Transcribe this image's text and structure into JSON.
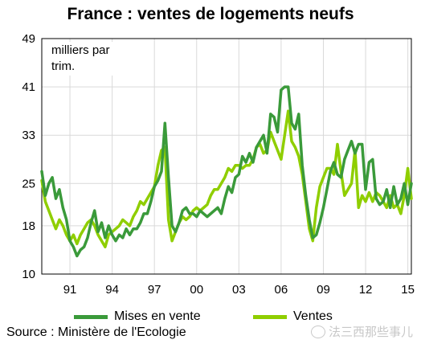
{
  "chart_data": {
    "type": "line",
    "title": "France : ventes de logements neufs",
    "unit_label_line1": "milliers par",
    "unit_label_line2": "trim.",
    "xlim": [
      1989.0,
      2015.25
    ],
    "ylim": [
      10,
      49
    ],
    "y_ticks": [
      10,
      18,
      25,
      33,
      41,
      49
    ],
    "x_ticks": [
      {
        "value": 1991.0,
        "label": "91"
      },
      {
        "value": 1994.0,
        "label": "94"
      },
      {
        "value": 1997.0,
        "label": "97"
      },
      {
        "value": 2000.0,
        "label": "00"
      },
      {
        "value": 2003.0,
        "label": "03"
      },
      {
        "value": 2006.0,
        "label": "06"
      },
      {
        "value": 2009.0,
        "label": "09"
      },
      {
        "value": 2012.0,
        "label": "12"
      },
      {
        "value": 2015.0,
        "label": "15"
      }
    ],
    "grid": true,
    "series": [
      {
        "name": "Mises en vente",
        "color": "#3a9a3a",
        "points": [
          [
            1989.0,
            27
          ],
          [
            1989.25,
            23
          ],
          [
            1989.5,
            25
          ],
          [
            1989.75,
            26
          ],
          [
            1990.0,
            22.5
          ],
          [
            1990.25,
            24
          ],
          [
            1990.5,
            21
          ],
          [
            1990.75,
            19
          ],
          [
            1991.0,
            15.5
          ],
          [
            1991.25,
            14.5
          ],
          [
            1991.5,
            13
          ],
          [
            1991.75,
            14
          ],
          [
            1992.0,
            14.5
          ],
          [
            1992.25,
            16
          ],
          [
            1992.5,
            18.5
          ],
          [
            1992.75,
            20.5
          ],
          [
            1993.0,
            17
          ],
          [
            1993.25,
            18.5
          ],
          [
            1993.5,
            16
          ],
          [
            1993.75,
            18
          ],
          [
            1994.0,
            16.5
          ],
          [
            1994.25,
            15.5
          ],
          [
            1994.5,
            16.5
          ],
          [
            1994.75,
            16
          ],
          [
            1995.0,
            17.5
          ],
          [
            1995.25,
            16.5
          ],
          [
            1995.5,
            17.5
          ],
          [
            1995.75,
            17.5
          ],
          [
            1996.0,
            18.5
          ],
          [
            1996.25,
            20
          ],
          [
            1996.5,
            20
          ],
          [
            1996.75,
            22
          ],
          [
            1997.0,
            24.5
          ],
          [
            1997.25,
            25.5
          ],
          [
            1997.5,
            27
          ],
          [
            1997.75,
            35
          ],
          [
            1998.0,
            26
          ],
          [
            1998.25,
            18
          ],
          [
            1998.5,
            17
          ],
          [
            1998.75,
            18.5
          ],
          [
            1999.0,
            20.5
          ],
          [
            1999.25,
            21
          ],
          [
            1999.5,
            20
          ],
          [
            1999.75,
            20
          ],
          [
            2000.0,
            19.5
          ],
          [
            2000.25,
            20.5
          ],
          [
            2000.5,
            20
          ],
          [
            2000.75,
            19.5
          ],
          [
            2001.0,
            20
          ],
          [
            2001.25,
            20.5
          ],
          [
            2001.5,
            21
          ],
          [
            2001.75,
            20
          ],
          [
            2002.0,
            22.5
          ],
          [
            2002.25,
            24.5
          ],
          [
            2002.5,
            23.5
          ],
          [
            2002.75,
            26
          ],
          [
            2003.0,
            26.5
          ],
          [
            2003.25,
            29.5
          ],
          [
            2003.5,
            28.5
          ],
          [
            2003.75,
            30
          ],
          [
            2004.0,
            28.5
          ],
          [
            2004.25,
            31
          ],
          [
            2004.5,
            32
          ],
          [
            2004.75,
            33
          ],
          [
            2005.0,
            30
          ],
          [
            2005.25,
            36.5
          ],
          [
            2005.5,
            36
          ],
          [
            2005.75,
            33.5
          ],
          [
            2006.0,
            40.5
          ],
          [
            2006.25,
            41
          ],
          [
            2006.5,
            41
          ],
          [
            2006.75,
            35
          ],
          [
            2007.0,
            34
          ],
          [
            2007.25,
            36.5
          ],
          [
            2007.5,
            28
          ],
          [
            2007.75,
            23
          ],
          [
            2008.0,
            19
          ],
          [
            2008.25,
            16
          ],
          [
            2008.5,
            16.5
          ],
          [
            2008.75,
            18.5
          ],
          [
            2009.0,
            21
          ],
          [
            2009.25,
            24
          ],
          [
            2009.5,
            27
          ],
          [
            2009.75,
            28.5
          ],
          [
            2010.0,
            26.5
          ],
          [
            2010.25,
            26
          ],
          [
            2010.5,
            29
          ],
          [
            2010.75,
            30.5
          ],
          [
            2011.0,
            32
          ],
          [
            2011.25,
            30
          ],
          [
            2011.5,
            31.5
          ],
          [
            2011.75,
            31.5
          ],
          [
            2012.0,
            24
          ],
          [
            2012.25,
            28.5
          ],
          [
            2012.5,
            29
          ],
          [
            2012.75,
            22.5
          ],
          [
            2013.0,
            21.5
          ],
          [
            2013.25,
            22
          ],
          [
            2013.5,
            24
          ],
          [
            2013.75,
            21
          ],
          [
            2014.0,
            24.5
          ],
          [
            2014.25,
            21.5
          ],
          [
            2014.5,
            22.5
          ],
          [
            2014.75,
            25
          ],
          [
            2015.0,
            21.5
          ],
          [
            2015.25,
            25
          ]
        ]
      },
      {
        "name": "Ventes",
        "color": "#8fce00",
        "points": [
          [
            1989.0,
            25.5
          ],
          [
            1989.25,
            22
          ],
          [
            1989.5,
            20.5
          ],
          [
            1989.75,
            19
          ],
          [
            1990.0,
            17.5
          ],
          [
            1990.25,
            19
          ],
          [
            1990.5,
            18
          ],
          [
            1990.75,
            16.5
          ],
          [
            1991.0,
            15.5
          ],
          [
            1991.25,
            16.5
          ],
          [
            1991.5,
            15
          ],
          [
            1991.75,
            16.5
          ],
          [
            1992.0,
            17.5
          ],
          [
            1992.25,
            18.5
          ],
          [
            1992.5,
            19
          ],
          [
            1992.75,
            18
          ],
          [
            1993.0,
            16.5
          ],
          [
            1993.25,
            15.5
          ],
          [
            1993.5,
            14.5
          ],
          [
            1993.75,
            16.5
          ],
          [
            1994.0,
            17
          ],
          [
            1994.25,
            17.5
          ],
          [
            1994.5,
            18
          ],
          [
            1994.75,
            19
          ],
          [
            1995.0,
            18.5
          ],
          [
            1995.25,
            18
          ],
          [
            1995.5,
            19.5
          ],
          [
            1995.75,
            20.5
          ],
          [
            1996.0,
            22
          ],
          [
            1996.25,
            21.5
          ],
          [
            1996.5,
            22.5
          ],
          [
            1996.75,
            23.5
          ],
          [
            1997.0,
            24.5
          ],
          [
            1997.25,
            28
          ],
          [
            1997.5,
            30.5
          ],
          [
            1997.75,
            31
          ],
          [
            1998.0,
            19
          ],
          [
            1998.25,
            15.5
          ],
          [
            1998.5,
            17
          ],
          [
            1998.75,
            18.5
          ],
          [
            1999.0,
            19.5
          ],
          [
            1999.25,
            19
          ],
          [
            1999.5,
            19.5
          ],
          [
            1999.75,
            20.5
          ],
          [
            2000.0,
            21
          ],
          [
            2000.25,
            20.5
          ],
          [
            2000.5,
            21
          ],
          [
            2000.75,
            21.5
          ],
          [
            2001.0,
            23
          ],
          [
            2001.25,
            24
          ],
          [
            2001.5,
            24
          ],
          [
            2001.75,
            25
          ],
          [
            2002.0,
            26
          ],
          [
            2002.25,
            27.5
          ],
          [
            2002.5,
            27
          ],
          [
            2002.75,
            28
          ],
          [
            2003.0,
            28
          ],
          [
            2003.25,
            27.5
          ],
          [
            2003.5,
            28
          ],
          [
            2003.75,
            28
          ],
          [
            2004.0,
            29
          ],
          [
            2004.25,
            31
          ],
          [
            2004.5,
            31.5
          ],
          [
            2004.75,
            30
          ],
          [
            2005.0,
            30.5
          ],
          [
            2005.25,
            33.5
          ],
          [
            2005.5,
            32
          ],
          [
            2005.75,
            30.5
          ],
          [
            2006.0,
            29
          ],
          [
            2006.25,
            33
          ],
          [
            2006.5,
            37
          ],
          [
            2006.75,
            32
          ],
          [
            2007.0,
            31
          ],
          [
            2007.25,
            29.5
          ],
          [
            2007.5,
            26.5
          ],
          [
            2007.75,
            22
          ],
          [
            2008.0,
            17.5
          ],
          [
            2008.25,
            15.5
          ],
          [
            2008.5,
            21
          ],
          [
            2008.75,
            24.5
          ],
          [
            2009.0,
            26
          ],
          [
            2009.25,
            27.5
          ],
          [
            2009.5,
            27.5
          ],
          [
            2009.75,
            26.5
          ],
          [
            2010.0,
            31.5
          ],
          [
            2010.25,
            27
          ],
          [
            2010.5,
            23
          ],
          [
            2010.75,
            24
          ],
          [
            2011.0,
            25
          ],
          [
            2011.25,
            30.5
          ],
          [
            2011.5,
            21
          ],
          [
            2011.75,
            23
          ],
          [
            2012.0,
            22
          ],
          [
            2012.25,
            23.5
          ],
          [
            2012.5,
            22
          ],
          [
            2012.75,
            23.5
          ],
          [
            2013.0,
            23
          ],
          [
            2013.25,
            22
          ],
          [
            2013.5,
            21
          ],
          [
            2013.75,
            23
          ],
          [
            2014.0,
            21
          ],
          [
            2014.25,
            21.5
          ],
          [
            2014.5,
            20
          ],
          [
            2014.75,
            23
          ],
          [
            2015.0,
            27.5
          ],
          [
            2015.25,
            22.5
          ]
        ]
      }
    ]
  },
  "source": "Source : Ministère de l'Ecologie",
  "watermark": "法三西那些事儿"
}
